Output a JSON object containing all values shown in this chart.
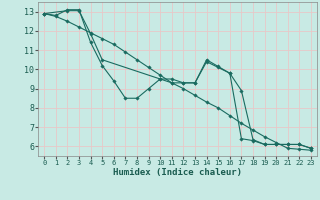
{
  "title": "",
  "xlabel": "Humidex (Indice chaleur)",
  "background_color": "#c8eae4",
  "grid_color": "#e8c8c8",
  "line_color": "#1a6b60",
  "xlim": [
    -0.5,
    23.5
  ],
  "ylim": [
    5.5,
    13.5
  ],
  "xticks": [
    0,
    1,
    2,
    3,
    4,
    5,
    6,
    7,
    8,
    9,
    10,
    11,
    12,
    13,
    14,
    15,
    16,
    17,
    18,
    19,
    20,
    21,
    22,
    23
  ],
  "yticks": [
    6,
    7,
    8,
    9,
    10,
    11,
    12,
    13
  ],
  "series": [
    {
      "x": [
        0,
        1,
        2,
        3,
        4,
        5,
        6,
        7,
        8,
        9,
        10,
        11,
        12,
        13,
        14,
        15,
        16,
        17,
        18,
        19,
        20,
        21,
        22,
        23
      ],
      "y": [
        12.9,
        12.8,
        13.1,
        13.1,
        11.4,
        10.2,
        9.4,
        8.5,
        8.5,
        9.0,
        9.5,
        9.3,
        9.3,
        9.3,
        10.4,
        10.1,
        9.8,
        6.4,
        6.3,
        6.1,
        6.1,
        6.1,
        6.1,
        5.9
      ]
    },
    {
      "x": [
        0,
        1,
        2,
        3,
        4,
        5,
        6,
        7,
        8,
        9,
        10,
        11,
        12,
        13,
        14,
        15,
        16,
        17,
        18,
        19,
        20,
        21,
        22,
        23
      ],
      "y": [
        12.9,
        12.75,
        12.5,
        12.2,
        11.9,
        11.6,
        11.3,
        10.9,
        10.5,
        10.1,
        9.7,
        9.3,
        9.0,
        8.65,
        8.3,
        8.0,
        7.6,
        7.2,
        6.85,
        6.5,
        6.2,
        5.9,
        5.85,
        5.8
      ]
    },
    {
      "x": [
        0,
        2,
        3,
        4,
        5,
        10,
        11,
        12,
        13,
        14,
        15,
        16,
        17,
        18,
        19,
        20,
        21,
        22,
        23
      ],
      "y": [
        12.9,
        13.05,
        13.05,
        11.85,
        10.5,
        9.5,
        9.5,
        9.3,
        9.3,
        10.5,
        10.15,
        9.8,
        8.9,
        6.35,
        6.1,
        6.1,
        6.1,
        6.1,
        5.9
      ]
    }
  ]
}
